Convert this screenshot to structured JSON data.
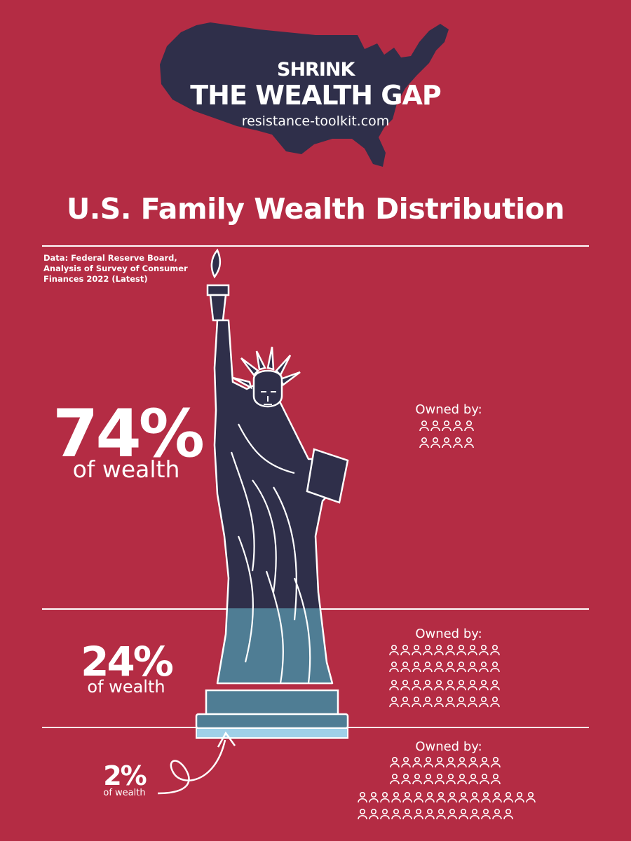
{
  "logo": {
    "shrink": "SHRINK",
    "headline": "THE WEALTH GAP",
    "website": "resistance-toolkit.com"
  },
  "title": "U.S. Family Wealth Distribution",
  "source": {
    "line1": "Data: Federal Reserve Board,",
    "line2": "Analysis of Survey of Consumer",
    "line3": "Finances 2022 (Latest)"
  },
  "tiers": [
    {
      "percent": "74%",
      "label": "of wealth",
      "owned_label": "Owned by:",
      "icon_count": 10
    },
    {
      "percent": "24%",
      "label": "of wealth",
      "owned_label": "Owned by:",
      "icon_count": 40
    },
    {
      "percent": "2%",
      "label": "of wealth",
      "owned_label": "Owned by:",
      "icon_count": 50
    }
  ],
  "colors": {
    "background": "#b42c44",
    "navy": "#2f2f4a",
    "teal": "#4f7d94",
    "light_blue": "#9fd0e8",
    "white": "#ffffff"
  }
}
